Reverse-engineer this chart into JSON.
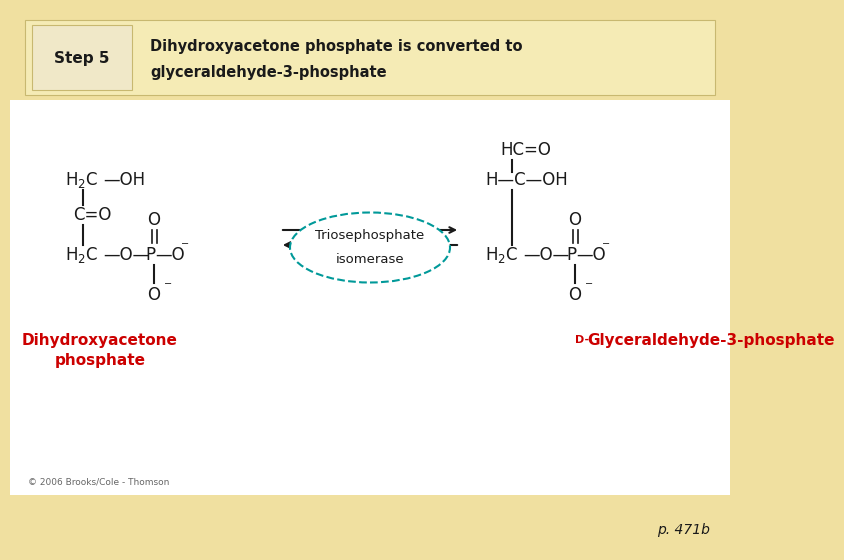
{
  "bg_tan": "#f0e0a0",
  "bg_white": "#ffffff",
  "bg_tan_bottom": "#e8d080",
  "header_bg": "#f5ebb5",
  "step_box_bg": "#f0e8c8",
  "step_label": "Step 5",
  "step_text_line1": "Dihydroxyacetone phosphate is converted to",
  "step_text_line2": "glyceraldehyde-3-phosphate",
  "left_label_line1": "Dihydroxyacetone",
  "left_label_line2": "phosphate",
  "right_label_prefix": "D-",
  "right_label_main": "Glyceraldehyde-3-phosphate",
  "enzyme_line1": "Triosephosphate",
  "enzyme_line2": "isomerase",
  "copyright": "© 2006 Brooks/Cole - Thomson",
  "page_ref": "p. 471b",
  "red_color": "#cc0000",
  "black_color": "#1a1a1a",
  "teal_color": "#009999",
  "border_color": "#c8b870"
}
